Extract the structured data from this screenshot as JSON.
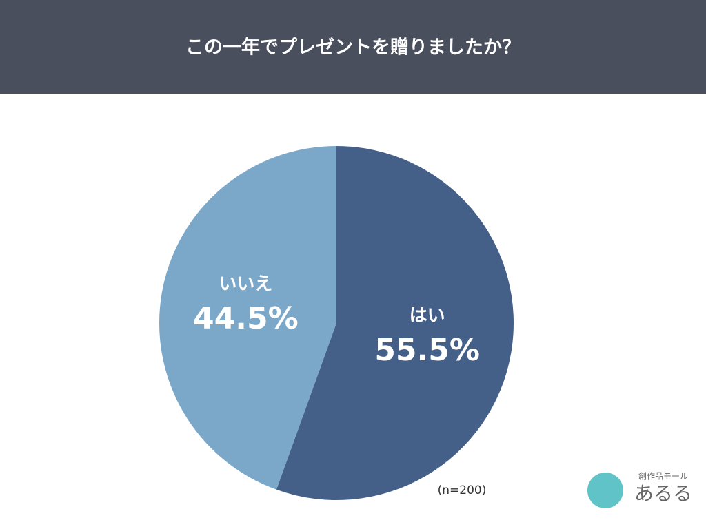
{
  "chart_data": {
    "type": "pie",
    "title": "この一年でプレゼントを贈りましたか？",
    "categories": [
      "はい",
      "いいえ"
    ],
    "values": [
      55.5,
      44.5
    ],
    "value_labels": [
      "55.5%",
      "44.5%"
    ],
    "colors": [
      "#445f88",
      "#7ba7c9"
    ],
    "annotation": "(n=200)"
  },
  "logo": {
    "tagline": "創作品モール",
    "name": "あるる"
  }
}
